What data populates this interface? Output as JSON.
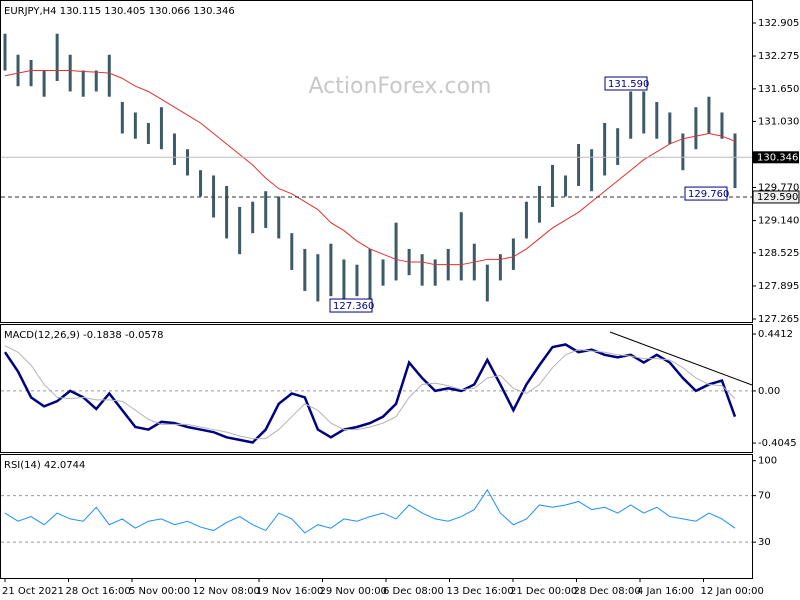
{
  "watermark": "ActionForex.com",
  "x_axis_labels": [
    "21 Oct 2021",
    "28 Oct 16:00",
    "5 Nov 00:00",
    "12 Nov 08:00",
    "19 Nov 16:00",
    "29 Nov 00:00",
    "6 Dec 08:00",
    "13 Dec 16:00",
    "21 Dec 00:00",
    "28 Dec 08:00",
    "4 Jan 16:00",
    "12 Jan 00:00"
  ],
  "chart_data": [
    {
      "type": "ohlc",
      "title": "EURJPY,H4",
      "ohlc_header": [
        130.115,
        130.405,
        130.066,
        130.346
      ],
      "ylim": [
        127.208,
        133.343
      ],
      "yticks": [
        132.905,
        132.275,
        {
          "value": 131.65,
          "label": "131.650"
        },
        {
          "value": 131.03,
          "label": "131.030"
        },
        {
          "value": 129.77,
          "label": "129.770"
        },
        {
          "value": 129.14,
          "label": "129.140"
        },
        128.525,
        127.895,
        127.265
      ],
      "last_price": 130.346,
      "level": {
        "value": 129.59,
        "label": "129.590"
      },
      "annotations": [
        {
          "value": 131.59,
          "label": "131.590"
        },
        {
          "value": 129.76,
          "label": "129.760"
        },
        {
          "value": 127.36,
          "label": "127.360"
        }
      ],
      "color": "#3d5a68",
      "high": [
        132.7,
        132.3,
        132.2,
        132.0,
        132.7,
        132.3,
        132.0,
        132.0,
        132.3,
        131.4,
        131.2,
        131.0,
        131.3,
        130.8,
        130.5,
        130.1,
        130.0,
        129.8,
        129.4,
        129.5,
        129.7,
        129.6,
        128.9,
        128.6,
        128.5,
        128.7,
        128.4,
        128.3,
        128.6,
        128.4,
        129.1,
        128.6,
        128.5,
        128.4,
        128.6,
        129.3,
        128.7,
        128.3,
        128.5,
        128.8,
        129.5,
        129.8,
        130.2,
        130.0,
        130.6,
        130.5,
        131.0,
        130.9,
        131.6,
        131.6,
        131.4,
        131.2,
        130.8,
        131.3,
        131.5,
        131.2,
        130.8
      ],
      "low": [
        132.0,
        131.7,
        131.7,
        131.5,
        131.8,
        131.6,
        131.5,
        131.6,
        131.5,
        130.8,
        130.7,
        130.6,
        130.5,
        130.2,
        130.0,
        129.6,
        129.2,
        128.8,
        128.5,
        128.9,
        129.0,
        128.8,
        128.2,
        127.8,
        127.6,
        127.7,
        127.6,
        127.7,
        127.6,
        127.9,
        128.0,
        128.1,
        127.9,
        127.9,
        128.0,
        128.0,
        128.0,
        127.6,
        128.0,
        128.2,
        128.8,
        129.1,
        129.4,
        129.6,
        129.8,
        129.7,
        130.0,
        130.2,
        130.7,
        130.8,
        130.7,
        130.6,
        130.1,
        130.5,
        130.8,
        130.7,
        129.76
      ],
      "ma": {
        "color": "#e03030",
        "values": [
          131.9,
          131.95,
          132.0,
          132.0,
          132.0,
          132.0,
          131.98,
          131.97,
          131.95,
          131.85,
          131.7,
          131.6,
          131.45,
          131.3,
          131.15,
          131.0,
          130.8,
          130.6,
          130.4,
          130.2,
          129.95,
          129.75,
          129.65,
          129.5,
          129.35,
          129.1,
          128.95,
          128.75,
          128.6,
          128.5,
          128.4,
          128.35,
          128.35,
          128.3,
          128.3,
          128.3,
          128.35,
          128.4,
          128.4,
          128.45,
          128.6,
          128.8,
          129.0,
          129.15,
          129.3,
          129.5,
          129.7,
          129.9,
          130.1,
          130.3,
          130.45,
          130.6,
          130.7,
          130.75,
          130.8,
          130.75,
          130.65
        ]
      }
    },
    {
      "type": "line",
      "title": "MACD(12,26,9)",
      "readout": [
        -0.1838,
        -0.0578
      ],
      "ylim": [
        -0.474,
        0.519
      ],
      "yticks": [
        0.4412,
        {
          "value": 0,
          "label": "0.00"
        },
        -0.4045
      ],
      "series": [
        {
          "color": "#000080",
          "values": [
            0.3,
            0.15,
            -0.05,
            -0.12,
            -0.08,
            0.0,
            -0.05,
            -0.14,
            -0.02,
            -0.15,
            -0.28,
            -0.3,
            -0.24,
            -0.25,
            -0.28,
            -0.3,
            -0.32,
            -0.36,
            -0.38,
            -0.4,
            -0.3,
            -0.1,
            -0.02,
            -0.05,
            -0.3,
            -0.36,
            -0.3,
            -0.28,
            -0.25,
            -0.2,
            -0.1,
            0.22,
            0.1,
            0.0,
            0.02,
            0.0,
            0.05,
            0.24,
            0.05,
            -0.15,
            0.05,
            0.2,
            0.34,
            0.36,
            0.3,
            0.32,
            0.28,
            0.26,
            0.28,
            0.22,
            0.28,
            0.22,
            0.1,
            0.0,
            0.05,
            0.08,
            -0.2
          ]
        },
        {
          "color": "#b4b4b4",
          "values": [
            0.35,
            0.3,
            0.2,
            0.05,
            -0.05,
            -0.06,
            -0.05,
            -0.07,
            -0.07,
            -0.08,
            -0.15,
            -0.22,
            -0.26,
            -0.26,
            -0.26,
            -0.28,
            -0.3,
            -0.32,
            -0.35,
            -0.37,
            -0.37,
            -0.3,
            -0.2,
            -0.1,
            -0.15,
            -0.25,
            -0.3,
            -0.3,
            -0.28,
            -0.25,
            -0.2,
            -0.05,
            0.05,
            0.06,
            0.04,
            0.01,
            0.02,
            0.1,
            0.12,
            0.02,
            -0.02,
            0.05,
            0.18,
            0.28,
            0.32,
            0.31,
            0.3,
            0.28,
            0.27,
            0.25,
            0.25,
            0.24,
            0.18,
            0.1,
            0.05,
            0.04,
            -0.06
          ]
        }
      ]
    },
    {
      "type": "line",
      "title": "RSI(14)",
      "readout": [
        42.0744
      ],
      "ylim": [
        -0.8,
        105.8
      ],
      "yticks": [
        100,
        70,
        30
      ],
      "series": [
        {
          "color": "#1e90ff",
          "values": [
            55,
            48,
            52,
            45,
            55,
            50,
            48,
            60,
            45,
            50,
            42,
            48,
            50,
            45,
            48,
            43,
            40,
            47,
            52,
            45,
            40,
            55,
            50,
            38,
            45,
            42,
            50,
            48,
            52,
            55,
            50,
            62,
            55,
            50,
            48,
            52,
            58,
            75,
            55,
            45,
            50,
            62,
            60,
            62,
            65,
            58,
            60,
            55,
            62,
            55,
            60,
            52,
            50,
            48,
            55,
            50,
            42
          ]
        }
      ]
    }
  ]
}
